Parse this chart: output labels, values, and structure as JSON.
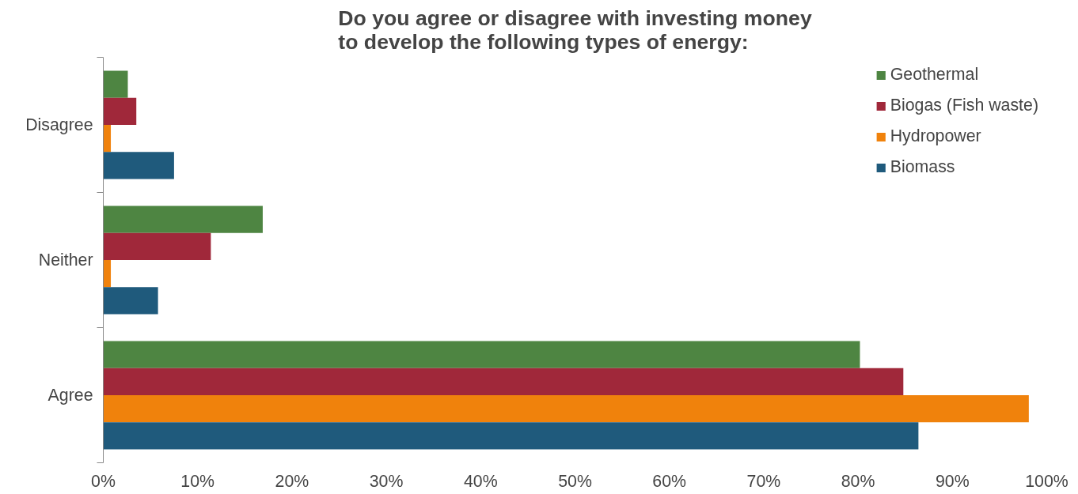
{
  "chart_data": {
    "type": "bar",
    "orientation": "horizontal",
    "title": "Do you agree or disagree with investing money\nto develop the following types of energy:",
    "categories": [
      "Disagree",
      "Neither",
      "Agree"
    ],
    "series": [
      {
        "name": "Geothermal",
        "color": "#4e8542",
        "values": [
          2.6,
          16.9,
          80.2
        ]
      },
      {
        "name": "Biogas (Fish waste)",
        "color": "#a0283a",
        "values": [
          3.5,
          11.4,
          84.8
        ]
      },
      {
        "name": "Hydropower",
        "color": "#f0820c",
        "values": [
          0.8,
          0.8,
          98.1
        ]
      },
      {
        "name": "Biomass",
        "color": "#1f5a7c",
        "values": [
          7.5,
          5.8,
          86.4
        ]
      }
    ],
    "xlim": [
      0,
      100
    ],
    "xticks": [
      {
        "value": 0,
        "label": "0%"
      },
      {
        "value": 10,
        "label": "10%"
      },
      {
        "value": 20,
        "label": "20%"
      },
      {
        "value": 30,
        "label": "30%"
      },
      {
        "value": 40,
        "label": "40%"
      },
      {
        "value": 50,
        "label": "50%"
      },
      {
        "value": 60,
        "label": "60%"
      },
      {
        "value": 70,
        "label": "70%"
      },
      {
        "value": 80,
        "label": "80%"
      },
      {
        "value": 90,
        "label": "90%"
      },
      {
        "value": 100,
        "label": "100%"
      }
    ],
    "grid": false,
    "legend": "top right"
  }
}
